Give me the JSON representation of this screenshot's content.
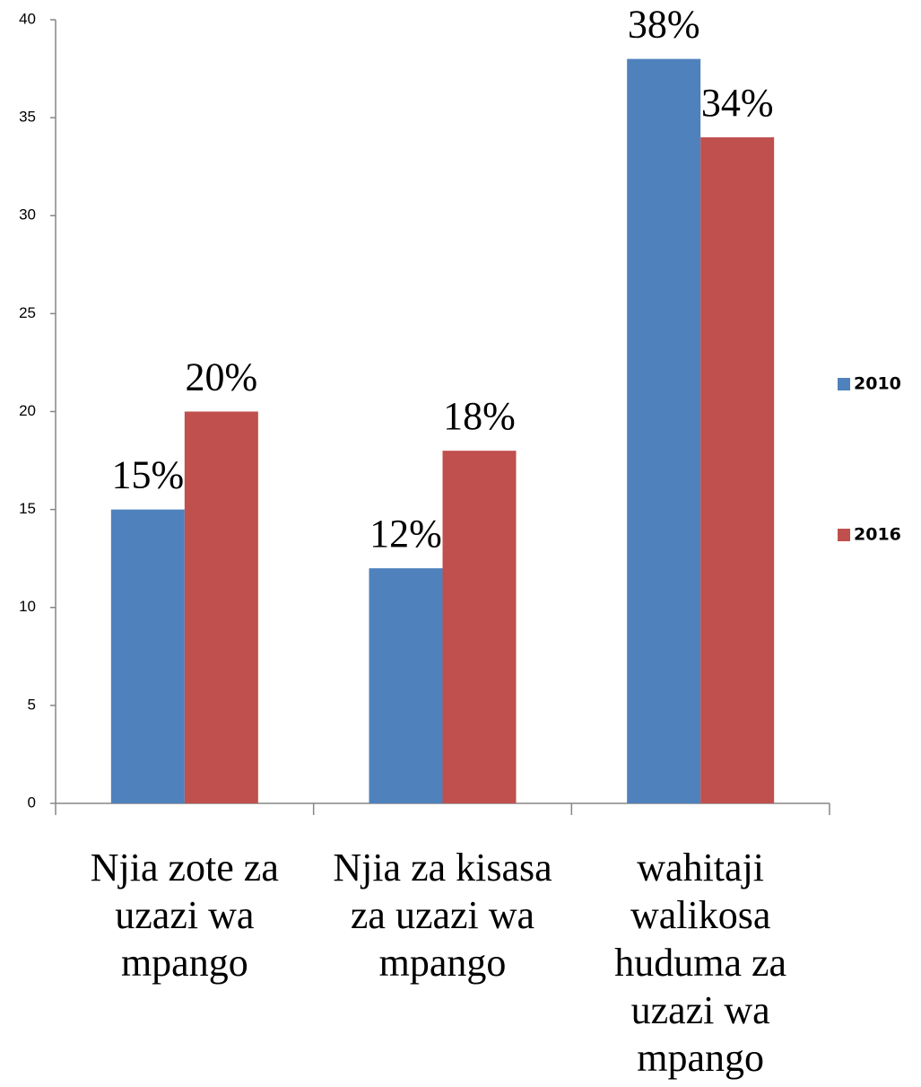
{
  "chart_data": {
    "type": "bar",
    "categories": [
      "Njia zote za uzazi wa mpango",
      "Njia za kisasa za uzazi wa mpango",
      "wahitaji walikosa huduma za uzazi wa mpango"
    ],
    "series": [
      {
        "name": "2010",
        "color": "#4f81bd",
        "values": [
          15,
          12,
          38
        ],
        "value_labels": [
          "15%",
          "12%",
          "38%"
        ]
      },
      {
        "name": "2016",
        "color": "#c0504d",
        "values": [
          20,
          18,
          34
        ],
        "value_labels": [
          "20%",
          "18%",
          "34%"
        ]
      }
    ],
    "ylim": [
      0,
      40
    ],
    "yticks": [
      0,
      5,
      10,
      15,
      20,
      25,
      30,
      35,
      40
    ],
    "legend": "right"
  }
}
